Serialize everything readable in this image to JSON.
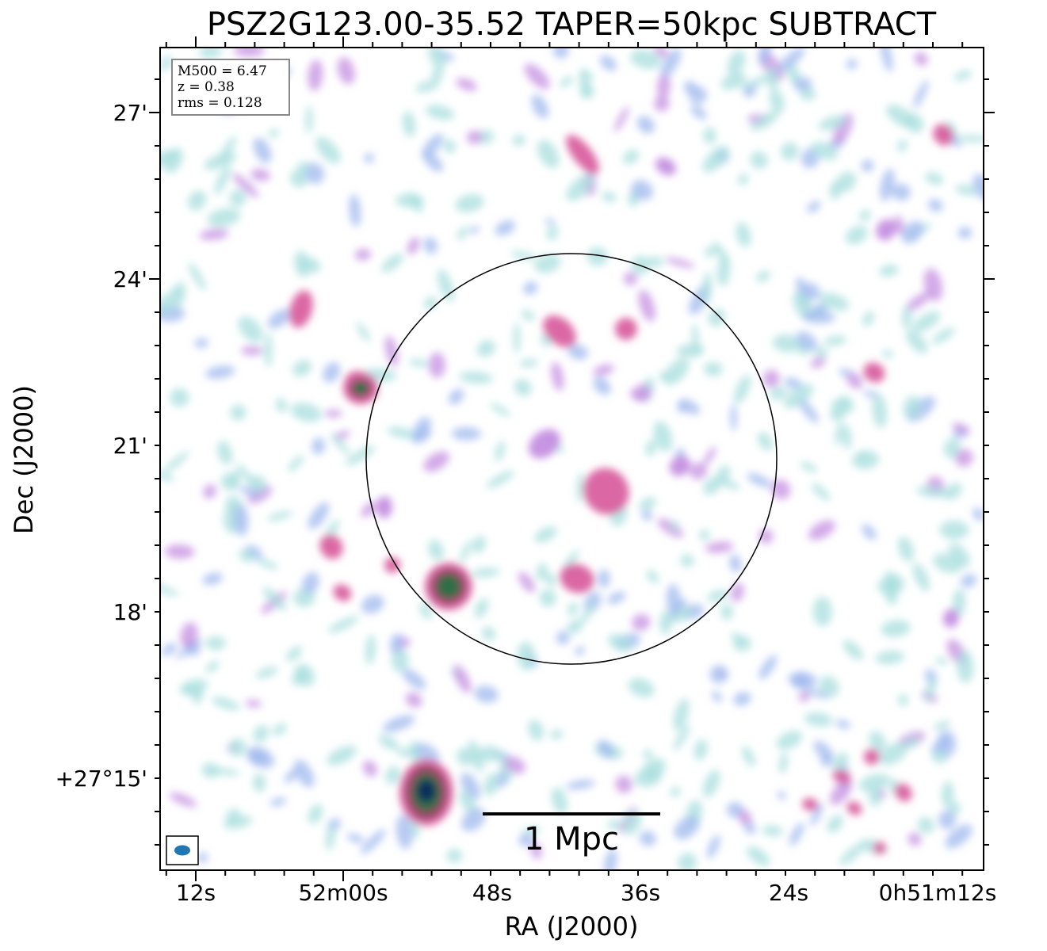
{
  "chart_data": {
    "type": "heatmap",
    "title": "PSZ2G123.00-35.52 TAPER=50kpc SUBTRACT",
    "xlabel": "RA (J2000)",
    "ylabel": "Dec (J2000)",
    "info": {
      "mass": "M500 = 6.47",
      "redshift": "z = 0.38",
      "rms": "rms = 0.128"
    },
    "x_ticks": [
      "12s",
      "52m00s",
      "48s",
      "36s",
      "24s",
      "0h51m12s"
    ],
    "y_ticks": [
      "27'",
      "24'",
      "21'",
      "18'",
      "+27°15'"
    ],
    "scale_bar": "1 Mpc",
    "colormap": [
      "#ffffff",
      "#a8dede",
      "#9fb8ee",
      "#c48fe0",
      "#d9609f",
      "#8e4a5e",
      "#2f6e4a",
      "#0f2f5a"
    ],
    "beam_color": "#1f77b4",
    "circle_color": "#000000"
  }
}
